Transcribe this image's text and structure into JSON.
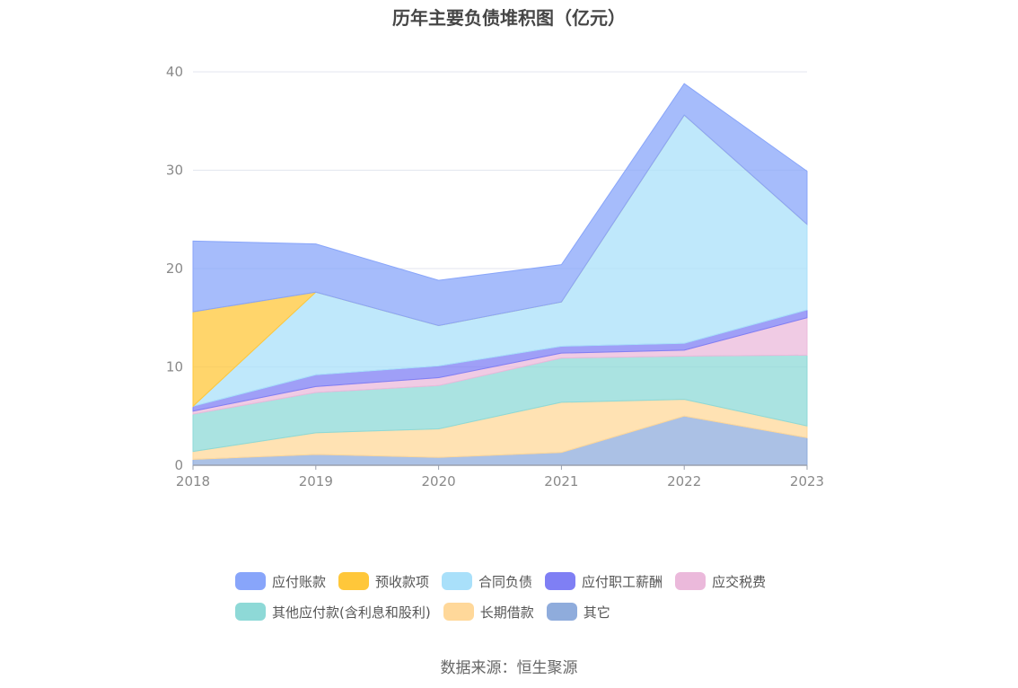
{
  "chart_data": {
    "type": "area",
    "stacked": true,
    "title": "历年主要负债堆积图（亿元）",
    "x": [
      "2018",
      "2019",
      "2020",
      "2021",
      "2022",
      "2023"
    ],
    "ylim": [
      0,
      40
    ],
    "yticks": [
      0,
      10,
      20,
      30,
      40
    ],
    "grid": true,
    "legend_position": "bottom",
    "series": [
      {
        "name": "其它",
        "color": "#8FACDC",
        "values": [
          0.6,
          1.1,
          0.8,
          1.3,
          5.0,
          2.8
        ]
      },
      {
        "name": "长期借款",
        "color": "#FFD89A",
        "values": [
          0.8,
          2.2,
          2.9,
          5.1,
          1.7,
          1.2
        ]
      },
      {
        "name": "其他应付款(含利息和股利)",
        "color": "#8ED9D7",
        "values": [
          3.8,
          4.1,
          4.4,
          4.5,
          4.4,
          7.2
        ]
      },
      {
        "name": "应交税费",
        "color": "#EBB9DB",
        "values": [
          0.3,
          0.6,
          0.8,
          0.5,
          0.6,
          3.8
        ]
      },
      {
        "name": "应付职工薪酬",
        "color": "#7F7FF4",
        "values": [
          0.5,
          1.2,
          1.2,
          0.7,
          0.7,
          0.8
        ]
      },
      {
        "name": "合同负债",
        "color": "#A9E0FA",
        "values": [
          0.0,
          8.4,
          4.1,
          4.5,
          23.2,
          8.7
        ]
      },
      {
        "name": "预收款项",
        "color": "#FFC73A",
        "values": [
          9.6,
          0.0,
          0.0,
          0.0,
          0.0,
          0.0
        ]
      },
      {
        "name": "应付账款",
        "color": "#88A5FA",
        "values": [
          7.2,
          4.9,
          4.6,
          3.8,
          3.2,
          5.4
        ]
      }
    ]
  },
  "legend": {
    "rows": [
      [
        {
          "label": "应付账款",
          "color": "#88A5FA"
        },
        {
          "label": "预收款项",
          "color": "#FFC73A"
        },
        {
          "label": "合同负债",
          "color": "#A9E0FA"
        },
        {
          "label": "应付职工薪酬",
          "color": "#7F7FF4"
        },
        {
          "label": "应交税费",
          "color": "#EBB9DB"
        }
      ],
      [
        {
          "label": "其他应付款(含利息和股利)",
          "color": "#8ED9D7"
        },
        {
          "label": "长期借款",
          "color": "#FFD89A"
        },
        {
          "label": "其它",
          "color": "#8FACDC"
        }
      ]
    ]
  },
  "source": "数据来源：恒生聚源"
}
